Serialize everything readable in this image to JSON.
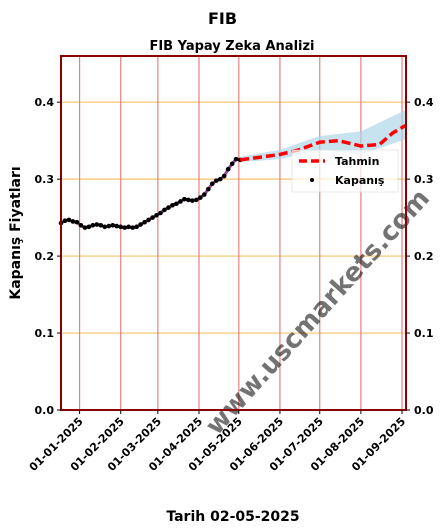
{
  "chart_data": {
    "type": "line",
    "title": "FIB",
    "subtitle": "FIB Yapay Zeka Analizi",
    "xlabel": "Tarih 02-05-2025",
    "ylabel": "Kapanış Fiyatları",
    "ylim": [
      0.0,
      0.46
    ],
    "xlim": [
      "2024-12-18",
      "2025-09-04"
    ],
    "y_ticks": [
      "0.0",
      "0.1",
      "0.2",
      "0.3",
      "0.4"
    ],
    "x_ticks": [
      "01-01-2025",
      "01-02-2025",
      "01-03-2025",
      "01-04-2025",
      "01-05-2025",
      "01-06-2025",
      "01-07-2025",
      "01-08-2025",
      "01-09-2025"
    ],
    "grid": true,
    "legend_position": "right",
    "watermark": "www.uscmarkets.com",
    "colors": {
      "frame": "#8b0000",
      "vgrid": "#e88080",
      "hgrid": "#f5c46a",
      "close": "#000000",
      "trend": "#7a1f7a",
      "forecast": "#ff0000",
      "band": "#a8d4e6"
    },
    "series": [
      {
        "name": "Kapanış",
        "style": "points",
        "points": [
          [
            "2024-12-18",
            0.243
          ],
          [
            "2024-12-21",
            0.246
          ],
          [
            "2024-12-24",
            0.247
          ],
          [
            "2024-12-27",
            0.245
          ],
          [
            "2024-12-30",
            0.244
          ],
          [
            "2025-01-02",
            0.24
          ],
          [
            "2025-01-05",
            0.237
          ],
          [
            "2025-01-08",
            0.238
          ],
          [
            "2025-01-11",
            0.24
          ],
          [
            "2025-01-14",
            0.241
          ],
          [
            "2025-01-17",
            0.24
          ],
          [
            "2025-01-20",
            0.238
          ],
          [
            "2025-01-23",
            0.239
          ],
          [
            "2025-01-26",
            0.24
          ],
          [
            "2025-01-29",
            0.239
          ],
          [
            "2025-02-01",
            0.238
          ],
          [
            "2025-02-04",
            0.237
          ],
          [
            "2025-02-07",
            0.238
          ],
          [
            "2025-02-10",
            0.237
          ],
          [
            "2025-02-13",
            0.238
          ],
          [
            "2025-02-16",
            0.241
          ],
          [
            "2025-02-19",
            0.244
          ],
          [
            "2025-02-22",
            0.247
          ],
          [
            "2025-02-25",
            0.25
          ],
          [
            "2025-02-28",
            0.253
          ],
          [
            "2025-03-03",
            0.256
          ],
          [
            "2025-03-06",
            0.26
          ],
          [
            "2025-03-09",
            0.263
          ],
          [
            "2025-03-12",
            0.266
          ],
          [
            "2025-03-15",
            0.268
          ],
          [
            "2025-03-18",
            0.271
          ],
          [
            "2025-03-21",
            0.274
          ],
          [
            "2025-03-24",
            0.273
          ],
          [
            "2025-03-27",
            0.272
          ],
          [
            "2025-03-30",
            0.273
          ],
          [
            "2025-04-02",
            0.276
          ],
          [
            "2025-04-05",
            0.28
          ],
          [
            "2025-04-08",
            0.287
          ],
          [
            "2025-04-11",
            0.294
          ],
          [
            "2025-04-14",
            0.298
          ],
          [
            "2025-04-17",
            0.3
          ],
          [
            "2025-04-20",
            0.304
          ],
          [
            "2025-04-23",
            0.313
          ],
          [
            "2025-04-26",
            0.32
          ],
          [
            "2025-04-29",
            0.326
          ],
          [
            "2025-05-02",
            0.325
          ]
        ]
      },
      {
        "name": "Tahmin",
        "style": "dashed",
        "points": [
          [
            "2025-05-02",
            0.325
          ],
          [
            "2025-05-15",
            0.328
          ],
          [
            "2025-06-01",
            0.332
          ],
          [
            "2025-06-15",
            0.338
          ],
          [
            "2025-07-01",
            0.348
          ],
          [
            "2025-07-15",
            0.35
          ],
          [
            "2025-08-01",
            0.343
          ],
          [
            "2025-08-15",
            0.345
          ],
          [
            "2025-08-25",
            0.36
          ],
          [
            "2025-09-04",
            0.37
          ]
        ]
      }
    ],
    "confidence_band": {
      "x": [
        "2025-05-02",
        "2025-06-01",
        "2025-07-01",
        "2025-08-01",
        "2025-09-04"
      ],
      "lower": [
        0.322,
        0.326,
        0.338,
        0.332,
        0.352
      ],
      "upper": [
        0.329,
        0.338,
        0.356,
        0.362,
        0.39
      ]
    }
  }
}
